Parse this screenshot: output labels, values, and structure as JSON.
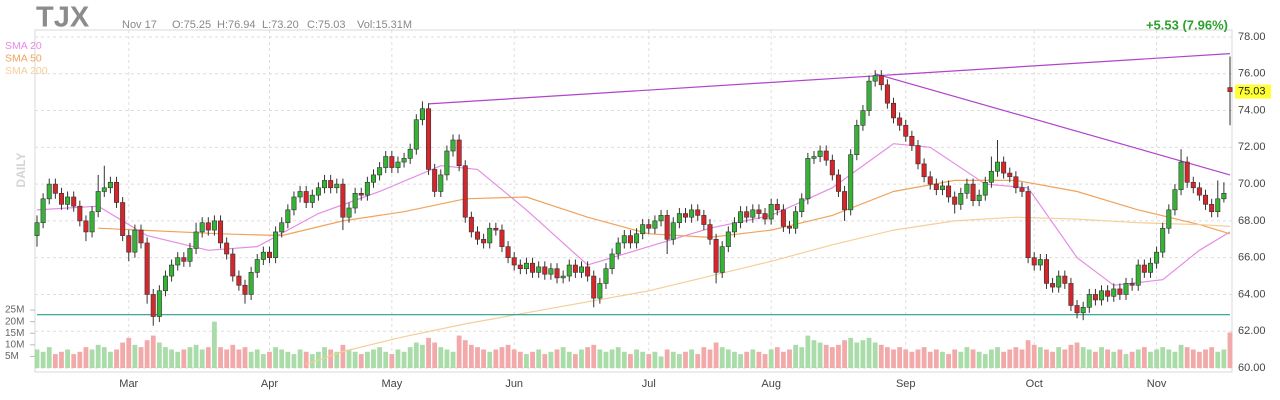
{
  "chart_data": {
    "type": "candlestick",
    "symbol": "TJX",
    "date": "Nov 17",
    "ohlc_text": [
      "O:75.25",
      "H:76.94",
      "L:73.20",
      "C:75.03"
    ],
    "volume_text": "Vol:15.31M",
    "change_text": "+5.53 (7.96%)",
    "period_label": "DAILY",
    "up_color": "#36b336",
    "down_color": "#d5262b",
    "volume_up_color": "#a9dca9",
    "volume_down_color": "#f2a9a9",
    "open": [
      67.2,
      67.9,
      69.2,
      70.0,
      69.5,
      68.9,
      69.3,
      68.8,
      68.0,
      67.4,
      68.5,
      69.6,
      69.8,
      70.1,
      69.0,
      67.2,
      66.3,
      67.5,
      66.8,
      64.0,
      62.8,
      64.2,
      65.0,
      65.6,
      66.0,
      65.8,
      66.5,
      67.4,
      67.9,
      67.5,
      68.0,
      66.8,
      66.2,
      65.0,
      64.5,
      64.0,
      65.2,
      65.9,
      66.3,
      66.0,
      67.4,
      67.9,
      68.6,
      69.3,
      69.6,
      69.0,
      69.4,
      69.8,
      70.2,
      69.8,
      70.0,
      68.2,
      68.7,
      69.5,
      69.4,
      70.1,
      70.5,
      70.9,
      71.5,
      70.9,
      71.2,
      71.4,
      71.9,
      73.5,
      74.1,
      70.8,
      69.6,
      70.5,
      71.8,
      72.4,
      71.0,
      68.2,
      67.4,
      67.0,
      66.8,
      67.6,
      67.5,
      66.6,
      66.0,
      65.6,
      65.4,
      65.7,
      65.2,
      65.5,
      65.1,
      65.4,
      64.9,
      65.0,
      65.6,
      65.2,
      65.5,
      65.0,
      63.8,
      64.6,
      65.4,
      66.2,
      66.8,
      67.2,
      66.8,
      67.3,
      67.8,
      67.6,
      68.0,
      68.3,
      67.0,
      67.9,
      68.4,
      68.2,
      68.6,
      68.3,
      67.8,
      67.0,
      65.2,
      66.6,
      67.4,
      67.9,
      68.5,
      68.2,
      68.6,
      68.4,
      68.1,
      68.9,
      68.6,
      67.7,
      67.6,
      68.5,
      69.2,
      71.4,
      71.5,
      71.8,
      71.3,
      70.5,
      69.6,
      68.6,
      71.6,
      73.2,
      74.0,
      75.6,
      75.9,
      75.4,
      74.4,
      73.6,
      73.2,
      72.6,
      72.1,
      71.1,
      70.4,
      70.0,
      69.7,
      69.9,
      69.3,
      68.9,
      69.5,
      70.0,
      69.1,
      69.4,
      70.1,
      70.7,
      71.2,
      70.6,
      70.4,
      69.8,
      69.6,
      66.0,
      65.6,
      65.9,
      64.6,
      64.4,
      65.0,
      64.6,
      63.4,
      63.0,
      63.3,
      64.0,
      63.7,
      64.2,
      63.9,
      64.3,
      64.0,
      64.6,
      64.5,
      65.6,
      65.2,
      65.7,
      66.3,
      67.6,
      68.6,
      69.7,
      71.2,
      70.1,
      69.8,
      69.4,
      68.9,
      68.5,
      69.2,
      75.25
    ],
    "high": [
      68.3,
      69.5,
      70.3,
      70.3,
      69.8,
      69.6,
      69.6,
      69.1,
      68.3,
      68.8,
      70.5,
      71.0,
      70.4,
      70.4,
      69.3,
      67.5,
      67.8,
      67.8,
      67.1,
      64.3,
      64.5,
      65.3,
      65.9,
      66.3,
      66.3,
      66.8,
      67.9,
      68.2,
      68.2,
      68.3,
      68.3,
      67.1,
      66.5,
      65.3,
      64.8,
      65.5,
      66.2,
      66.6,
      66.6,
      67.7,
      68.2,
      68.9,
      69.6,
      69.9,
      69.9,
      69.7,
      70.1,
      70.5,
      70.5,
      70.3,
      70.3,
      69.0,
      69.8,
      69.8,
      70.4,
      70.8,
      71.2,
      71.8,
      71.8,
      71.5,
      71.7,
      72.2,
      73.8,
      74.5,
      74.4,
      71.1,
      70.8,
      72.1,
      72.7,
      72.7,
      71.3,
      68.5,
      67.7,
      67.3,
      67.9,
      67.9,
      67.8,
      66.9,
      66.3,
      65.9,
      66.0,
      66.0,
      65.8,
      65.8,
      65.7,
      65.7,
      65.3,
      65.9,
      65.9,
      65.8,
      65.8,
      65.3,
      64.9,
      65.7,
      66.5,
      67.1,
      67.5,
      67.5,
      67.6,
      68.1,
      68.1,
      68.3,
      68.6,
      68.6,
      68.2,
      68.7,
      68.7,
      68.9,
      68.9,
      68.6,
      68.1,
      67.3,
      66.9,
      67.7,
      68.2,
      68.8,
      68.8,
      68.9,
      68.9,
      68.7,
      69.2,
      69.2,
      68.9,
      68.0,
      68.8,
      69.5,
      71.7,
      71.8,
      72.1,
      72.1,
      71.6,
      70.8,
      69.9,
      71.9,
      73.5,
      74.3,
      75.9,
      76.2,
      76.2,
      75.7,
      74.7,
      73.9,
      73.5,
      72.9,
      72.4,
      71.4,
      70.7,
      70.3,
      70.2,
      70.2,
      69.6,
      69.8,
      70.3,
      70.3,
      69.7,
      70.4,
      71.5,
      72.4,
      71.5,
      70.9,
      70.7,
      70.1,
      69.9,
      66.3,
      66.2,
      66.2,
      64.9,
      65.3,
      65.3,
      64.9,
      63.7,
      63.6,
      64.3,
      64.3,
      64.5,
      64.5,
      64.6,
      64.6,
      64.9,
      64.9,
      65.9,
      65.9,
      66.0,
      66.6,
      67.9,
      68.9,
      70.0,
      71.9,
      71.5,
      70.4,
      70.1,
      69.7,
      69.2,
      70.2,
      70.1,
      76.94
    ],
    "low": [
      66.6,
      67.6,
      68.9,
      69.2,
      68.6,
      68.6,
      68.5,
      67.7,
      66.9,
      67.1,
      68.2,
      69.3,
      69.5,
      68.7,
      66.9,
      65.8,
      66.0,
      66.5,
      63.5,
      62.3,
      62.5,
      63.9,
      64.7,
      65.3,
      65.5,
      65.5,
      66.2,
      67.1,
      67.2,
      67.2,
      66.5,
      65.9,
      64.7,
      64.2,
      63.5,
      63.7,
      64.9,
      65.6,
      65.7,
      65.7,
      67.1,
      67.6,
      68.3,
      69.0,
      68.7,
      68.7,
      69.1,
      69.5,
      69.5,
      69.5,
      67.5,
      67.9,
      68.4,
      69.1,
      69.1,
      69.8,
      70.2,
      70.6,
      70.6,
      70.6,
      70.9,
      71.1,
      71.6,
      73.2,
      70.5,
      69.3,
      69.3,
      70.2,
      71.5,
      70.7,
      67.9,
      67.1,
      66.7,
      66.5,
      66.5,
      67.2,
      66.3,
      65.7,
      65.3,
      65.1,
      65.1,
      64.9,
      64.9,
      64.8,
      64.8,
      64.6,
      64.6,
      64.7,
      64.9,
      64.9,
      64.7,
      63.3,
      63.5,
      64.3,
      65.1,
      65.9,
      66.5,
      66.5,
      66.5,
      67.0,
      67.3,
      67.3,
      67.7,
      66.2,
      66.7,
      67.6,
      67.9,
      67.9,
      68.0,
      67.5,
      66.7,
      64.6,
      64.9,
      66.3,
      67.1,
      67.6,
      67.9,
      67.9,
      68.1,
      67.8,
      67.8,
      68.3,
      67.4,
      67.3,
      67.3,
      68.2,
      68.9,
      71.1,
      71.2,
      71.0,
      70.2,
      69.3,
      68.0,
      68.3,
      71.3,
      72.9,
      73.7,
      75.3,
      75.1,
      74.1,
      73.3,
      72.9,
      72.3,
      71.8,
      70.8,
      70.1,
      69.7,
      69.4,
      69.4,
      69.0,
      68.4,
      68.6,
      69.2,
      68.8,
      68.8,
      69.1,
      69.8,
      70.4,
      70.3,
      70.1,
      69.5,
      69.3,
      65.7,
      65.3,
      65.3,
      64.3,
      64.1,
      64.1,
      64.3,
      63.1,
      62.7,
      62.6,
      63.0,
      63.4,
      63.4,
      63.6,
      63.6,
      63.7,
      63.7,
      64.2,
      64.2,
      64.9,
      64.9,
      65.4,
      66.0,
      67.3,
      68.3,
      69.4,
      69.8,
      69.5,
      69.1,
      68.6,
      68.2,
      68.2,
      69.0,
      73.2
    ],
    "close": [
      67.9,
      69.2,
      70.0,
      69.5,
      68.9,
      69.3,
      68.8,
      68.0,
      67.4,
      68.5,
      69.6,
      69.8,
      70.1,
      69.0,
      67.2,
      66.3,
      67.5,
      66.8,
      64.0,
      62.8,
      64.2,
      65.0,
      65.6,
      66.0,
      65.8,
      66.5,
      67.4,
      67.9,
      67.5,
      68.0,
      66.8,
      66.2,
      65.0,
      64.5,
      64.0,
      65.2,
      65.9,
      66.3,
      66.0,
      67.4,
      67.9,
      68.6,
      69.3,
      69.6,
      69.0,
      69.4,
      69.8,
      70.2,
      69.8,
      70.0,
      68.2,
      68.7,
      69.5,
      69.4,
      70.1,
      70.5,
      70.9,
      71.5,
      70.9,
      71.2,
      71.4,
      71.9,
      73.5,
      74.1,
      70.8,
      69.6,
      70.5,
      71.8,
      72.4,
      71.0,
      68.2,
      67.4,
      67.0,
      66.8,
      67.6,
      67.5,
      66.6,
      66.0,
      65.6,
      65.4,
      65.7,
      65.2,
      65.5,
      65.1,
      65.4,
      64.9,
      65.0,
      65.6,
      65.2,
      65.5,
      65.0,
      63.8,
      64.6,
      65.4,
      66.2,
      66.8,
      67.2,
      66.8,
      67.3,
      67.8,
      67.6,
      68.0,
      68.3,
      67.0,
      67.9,
      68.4,
      68.2,
      68.6,
      68.3,
      67.8,
      67.0,
      65.2,
      66.6,
      67.4,
      67.9,
      68.5,
      68.2,
      68.6,
      68.4,
      68.1,
      68.9,
      68.6,
      67.7,
      67.6,
      68.5,
      69.2,
      71.4,
      71.5,
      71.8,
      71.3,
      70.5,
      69.6,
      68.6,
      71.6,
      73.2,
      74.0,
      75.6,
      75.9,
      75.4,
      74.4,
      73.6,
      73.2,
      72.6,
      72.1,
      71.1,
      70.4,
      70.0,
      69.7,
      69.9,
      69.3,
      68.9,
      69.5,
      70.0,
      69.1,
      69.4,
      70.1,
      70.7,
      71.2,
      70.6,
      70.4,
      69.8,
      69.6,
      66.0,
      65.6,
      65.9,
      64.6,
      64.4,
      65.0,
      64.6,
      63.4,
      63.0,
      63.3,
      64.0,
      63.7,
      64.2,
      63.9,
      64.3,
      64.0,
      64.6,
      64.5,
      65.6,
      65.2,
      65.7,
      66.3,
      67.6,
      68.6,
      69.7,
      71.2,
      70.1,
      69.8,
      69.4,
      68.9,
      68.5,
      69.2,
      69.5,
      75.03
    ],
    "volume": [
      8,
      7,
      9,
      6,
      7,
      8,
      6,
      7,
      9,
      8,
      10,
      9,
      7,
      8,
      11,
      13,
      10,
      9,
      12,
      14,
      11,
      9,
      8,
      7,
      8,
      9,
      10,
      8,
      9,
      20,
      9,
      8,
      10,
      8,
      9,
      7,
      8,
      6,
      7,
      9,
      8,
      7,
      6,
      8,
      7,
      6,
      7,
      9,
      8,
      7,
      10,
      8,
      7,
      6,
      7,
      8,
      9,
      7,
      6,
      8,
      7,
      9,
      11,
      10,
      13,
      11,
      9,
      8,
      7,
      14,
      12,
      10,
      9,
      8,
      7,
      8,
      9,
      10,
      8,
      7,
      6,
      7,
      8,
      6,
      7,
      8,
      9,
      7,
      6,
      8,
      9,
      10,
      8,
      7,
      8,
      9,
      7,
      6,
      8,
      7,
      6,
      7,
      5,
      8,
      7,
      6,
      7,
      8,
      6,
      9,
      8,
      11,
      9,
      8,
      7,
      6,
      7,
      8,
      7,
      6,
      8,
      9,
      7,
      8,
      10,
      9,
      14,
      12,
      11,
      10,
      9,
      10,
      12,
      13,
      11,
      12,
      13,
      11,
      10,
      9,
      8,
      9,
      8,
      7,
      8,
      9,
      7,
      8,
      7,
      6,
      8,
      7,
      9,
      8,
      7,
      6,
      8,
      9,
      7,
      8,
      9,
      8,
      12,
      10,
      9,
      8,
      7,
      9,
      8,
      10,
      11,
      9,
      8,
      7,
      9,
      8,
      7,
      8,
      6,
      7,
      8,
      9,
      7,
      8,
      9,
      8,
      7,
      10,
      9,
      8,
      7,
      8,
      9,
      7,
      8,
      15.31
    ],
    "xlim": [
      0,
      195
    ],
    "xticks": [
      {
        "value": 15,
        "label": "Mar"
      },
      {
        "value": 38,
        "label": "Apr"
      },
      {
        "value": 58,
        "label": "May"
      },
      {
        "value": 78,
        "label": "Jun"
      },
      {
        "value": 100,
        "label": "Jul"
      },
      {
        "value": 120,
        "label": "Aug"
      },
      {
        "value": 142,
        "label": "Sep"
      },
      {
        "value": 163,
        "label": "Oct"
      },
      {
        "value": 183,
        "label": "Nov"
      }
    ],
    "ylim": [
      60,
      78
    ],
    "yticks": [
      {
        "value": 60,
        "label": "60.00"
      },
      {
        "value": 62,
        "label": "62.00"
      },
      {
        "value": 64,
        "label": "64.00"
      },
      {
        "value": 66,
        "label": "66.00"
      },
      {
        "value": 68,
        "label": "68.00"
      },
      {
        "value": 70,
        "label": "70.00"
      },
      {
        "value": 72,
        "label": "72.00"
      },
      {
        "value": 74,
        "label": "74.00"
      },
      {
        "value": 76,
        "label": "76.00"
      },
      {
        "value": 78,
        "label": "78.00"
      }
    ],
    "vlim": [
      0,
      27.2
    ],
    "vticks": [
      {
        "value": 5,
        "label": "5M"
      },
      {
        "value": 10,
        "label": "10M"
      },
      {
        "value": 15,
        "label": "15M"
      },
      {
        "value": 20,
        "label": "20M"
      },
      {
        "value": 25,
        "label": "25M"
      }
    ],
    "grid": true,
    "series": [
      {
        "name": "SMA 20",
        "color": "#e58ce5",
        "x": [
          0,
          10,
          18,
          28,
          36,
          46,
          56,
          66,
          72,
          80,
          90,
          100,
          110,
          120,
          130,
          140,
          146,
          155,
          162,
          170,
          176,
          184,
          190,
          195
        ],
        "values": [
          68.6,
          68.8,
          67.2,
          66.4,
          66.6,
          68.4,
          69.6,
          71.0,
          70.8,
          68.6,
          65.6,
          66.6,
          67.6,
          68.3,
          69.8,
          72.2,
          72.0,
          70.0,
          69.8,
          66.0,
          64.5,
          64.8,
          66.4,
          67.4
        ]
      },
      {
        "name": "SMA 50",
        "color": "#f0a35c",
        "x": [
          10,
          30,
          40,
          50,
          60,
          70,
          80,
          90,
          100,
          110,
          120,
          130,
          140,
          150,
          160,
          170,
          180,
          190,
          195
        ],
        "values": [
          67.6,
          67.3,
          67.2,
          68.0,
          68.5,
          69.2,
          69.3,
          68.2,
          67.3,
          67.1,
          67.5,
          68.3,
          69.6,
          70.2,
          70.2,
          69.6,
          68.6,
          67.8,
          67.3
        ]
      },
      {
        "name": "SMA 200",
        "color": "#f4cf98",
        "x": [
          44,
          50,
          60,
          70,
          80,
          90,
          100,
          110,
          120,
          130,
          140,
          150,
          160,
          170,
          180,
          190,
          195
        ],
        "values": [
          60.2,
          60.9,
          61.7,
          62.4,
          63.0,
          63.6,
          64.2,
          65.0,
          65.8,
          66.7,
          67.5,
          68.0,
          68.2,
          68.1,
          67.9,
          67.8,
          67.7
        ]
      }
    ],
    "trendlines": [
      {
        "color": "#b044cc",
        "x": [
          64,
          195
        ],
        "values": [
          74.36,
          77.1
        ]
      },
      {
        "color": "#b044cc",
        "x": [
          137,
          195
        ],
        "values": [
          76.0,
          70.5
        ]
      },
      {
        "color": "#2a9d8f",
        "x": [
          0,
          195
        ],
        "values": [
          62.9,
          62.9
        ]
      }
    ]
  }
}
